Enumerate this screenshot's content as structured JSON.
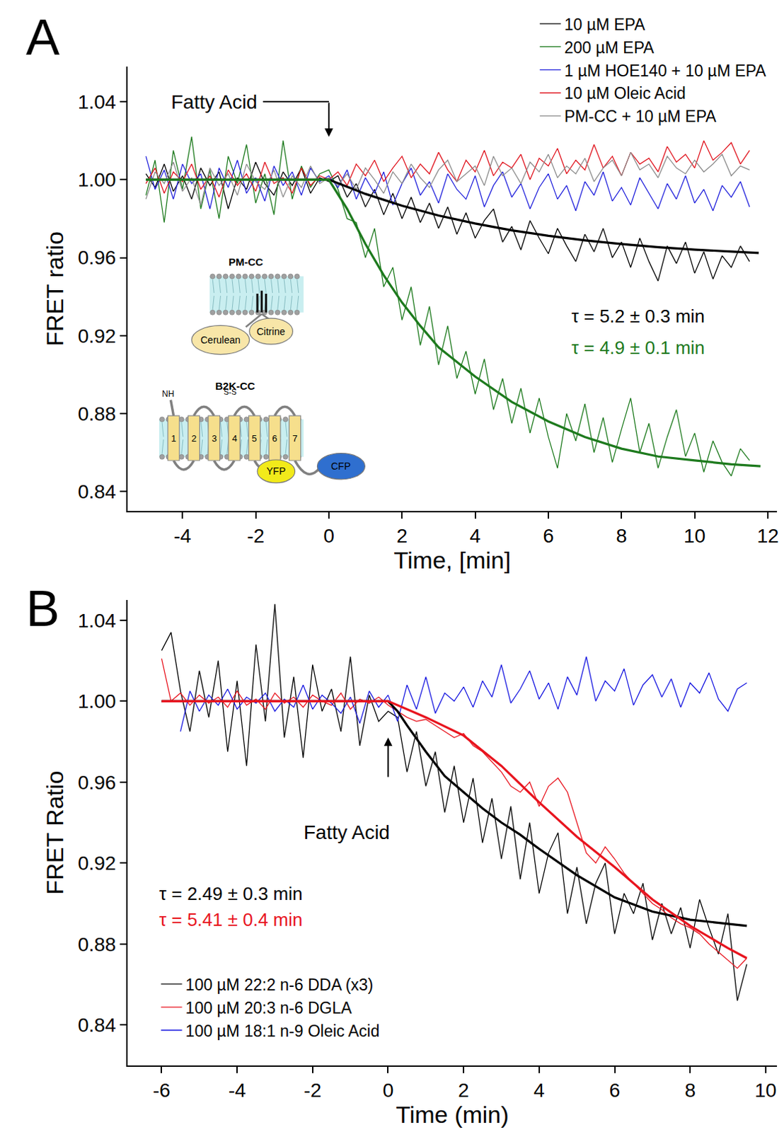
{
  "chart_data": [
    {
      "panel": "A",
      "type": "line",
      "x_label": "Time, [min]",
      "y_label": "FRET ratio",
      "xlim": [
        -5.5,
        12.25
      ],
      "ylim": [
        0.83,
        1.058
      ],
      "xticks": [
        -4,
        -2,
        0,
        2,
        4,
        6,
        8,
        10,
        12
      ],
      "yticks": [
        0.84,
        0.88,
        0.92,
        0.96,
        {
          "value": 1,
          "label": "1.00"
        },
        1.04
      ],
      "grid": false,
      "legend": "top right",
      "x": [
        -5,
        -4.75,
        -4.5,
        -4.25,
        -4,
        -3.75,
        -3.5,
        -3.25,
        -3,
        -2.75,
        -2.5,
        -2.25,
        -2,
        -1.75,
        -1.5,
        -1.25,
        -1,
        -0.75,
        -0.5,
        -0.25,
        0,
        0.25,
        0.5,
        0.75,
        1,
        1.25,
        1.5,
        1.75,
        2,
        2.25,
        2.5,
        2.75,
        3,
        3.25,
        3.5,
        3.75,
        4,
        4.25,
        4.5,
        4.75,
        5,
        5.25,
        5.5,
        5.75,
        6,
        6.25,
        6.5,
        6.75,
        7,
        7.25,
        7.5,
        7.75,
        8,
        8.25,
        8.5,
        8.75,
        9,
        9.25,
        9.5,
        9.75,
        10,
        10.25,
        10.5,
        10.75,
        11,
        11.25,
        11.5
      ],
      "series": [
        {
          "name": "10 µM EPA",
          "color": "#000000",
          "values": [
            1.003,
            0.996,
            1.008,
            0.994,
            1.002,
            0.99,
            1.006,
            0.997,
            1.004,
            0.985,
            1.001,
            0.995,
            1.009,
            0.998,
            0.992,
            1.004,
            0.997,
            1.006,
            0.993,
            1.001,
            0.999,
            1.002,
            0.991,
            0.998,
            0.986,
            0.995,
            0.982,
            0.993,
            0.98,
            0.991,
            0.978,
            0.988,
            0.975,
            0.986,
            0.972,
            0.983,
            0.97,
            0.979,
            0.985,
            0.968,
            0.976,
            0.964,
            0.979,
            0.97,
            0.962,
            0.975,
            0.966,
            0.958,
            0.972,
            0.963,
            0.975,
            0.96,
            0.968,
            0.955,
            0.97,
            0.958,
            0.948,
            0.966,
            0.957,
            0.968,
            0.952,
            0.963,
            0.949,
            0.961,
            0.955,
            0.966,
            0.958
          ],
          "fit": {
            "x": [
              -5,
              0,
              1,
              2,
              3,
              4,
              5,
              6,
              7,
              8,
              9,
              10,
              11,
              11.75
            ],
            "values": [
              1,
              1,
              0.9927,
              0.9866,
              0.9816,
              0.9775,
              0.974,
              0.9712,
              0.9689,
              0.967,
              0.9654,
              0.9641,
              0.9631,
              0.9624
            ]
          }
        },
        {
          "name": "200 µM EPA",
          "color": "#1d7a1d",
          "values": [
            0.992,
            1.01,
            0.978,
            1.015,
            0.995,
            1.022,
            0.985,
            1.005,
            0.98,
            1.012,
            0.998,
            1.018,
            0.988,
            1.003,
            0.982,
            1.02,
            0.99,
            1.007,
            0.996,
            1.003,
            1.005,
            0.995,
            0.98,
            0.978,
            0.96,
            0.975,
            0.945,
            0.955,
            0.928,
            0.945,
            0.915,
            0.935,
            0.905,
            0.925,
            0.898,
            0.912,
            0.89,
            0.908,
            0.882,
            0.898,
            0.875,
            0.893,
            0.87,
            0.888,
            0.868,
            0.852,
            0.88,
            0.866,
            0.885,
            0.86,
            0.878,
            0.855,
            0.872,
            0.888,
            0.86,
            0.875,
            0.852,
            0.868,
            0.882,
            0.858,
            0.87,
            0.85,
            0.866,
            0.855,
            0.848,
            0.862,
            0.856
          ],
          "fit": {
            "x": [
              -5,
              0,
              0.5,
              1,
              1.5,
              2,
              2.5,
              3,
              4,
              5,
              6,
              7,
              8,
              9,
              10,
              11,
              11.8
            ],
            "values": [
              1,
              1,
              0.985,
              0.967,
              0.951,
              0.937,
              0.925,
              0.914,
              0.899,
              0.886,
              0.876,
              0.868,
              0.862,
              0.858,
              0.856,
              0.854,
              0.853
            ]
          }
        },
        {
          "name": "1 µM HOE140 + 10 µM EPA",
          "color": "#2323dc",
          "values": [
            1.012,
            0.995,
            1.005,
            0.99,
            1.008,
            0.998,
            1.003,
            0.985,
            1.006,
            0.996,
            1.01,
            0.993,
            1.001,
            0.989,
            1.007,
            0.997,
            1.004,
            0.992,
            1.006,
            0.999,
            1.002,
            0.996,
            1.005,
            0.99,
            1.001,
            0.993,
            1.004,
            0.987,
            0.998,
            1.006,
            0.992,
            0.999,
            0.988,
            1.003,
            0.995,
            0.99,
            1.002,
            0.986,
            0.997,
            1.004,
            0.991,
            0.998,
            0.985,
            0.996,
            1.003,
            0.99,
            0.997,
            0.984,
            0.999,
            0.992,
            1.004,
            0.989,
            0.996,
            0.987,
            1.001,
            0.993,
            0.985,
            0.998,
            0.99,
            1.002,
            0.988,
            0.995,
            0.984,
            0.997,
            0.991,
            0.999,
            0.986
          ]
        },
        {
          "name": "10 µM Oleic Acid",
          "color": "#e0141e",
          "values": [
            0.998,
            1.006,
            0.993,
            1.004,
            0.999,
            1.008,
            0.995,
            1.002,
            0.991,
            1.005,
            0.997,
            1.003,
            0.994,
            1.009,
            0.998,
            1.001,
            0.993,
            1.006,
            0.997,
            1.002,
            1.0,
            1.004,
            0.997,
            1.008,
            1.002,
            1.01,
            0.999,
            1.006,
            1.012,
            1.001,
            1.008,
            1.003,
            1.014,
            1.005,
            0.999,
            1.01,
            1.004,
            1.015,
            1.002,
            1.009,
            1.006,
            1.013,
            1.0,
            1.011,
            1.007,
            1.016,
            1.003,
            1.01,
            1.005,
            1.018,
            1.006,
            1.012,
            1.002,
            1.014,
            1.008,
            1.011,
            1.004,
            1.017,
            1.009,
            1.013,
            1.006,
            1.02,
            1.01,
            1.014,
            1.019,
            1.008,
            1.015
          ]
        },
        {
          "name": "PM-CC + 10 µM EPA",
          "color": "#8c8c8c",
          "values": [
            0.99,
            1.004,
            0.998,
            1.009,
            0.994,
            1.001,
            0.987,
            1.006,
            0.997,
            1.003,
            0.992,
            1.008,
            0.999,
            0.995,
            1.005,
            0.991,
            1.002,
            0.996,
            1.007,
            0.998,
            1.001,
            0.997,
            1.003,
            0.995,
            1.006,
            1.0,
            0.993,
            1.004,
            0.998,
            1.008,
            1.001,
            0.996,
            1.005,
            1.01,
            0.999,
            1.003,
            1.007,
            0.997,
            1.012,
            1.002,
            1.006,
            0.998,
            1.009,
            1.004,
            1.013,
            1.001,
            1.007,
            1.003,
            1.011,
            0.999,
            1.006,
            1.01,
            1.002,
            1.014,
            1.005,
            1.008,
            1.001,
            1.012,
            1.006,
            1.003,
            1.01,
            1.004,
            1.008,
            1.013,
            1.002,
            1.007,
            1.005
          ]
        }
      ],
      "annotations": [
        {
          "text": "τ = 5.2 ± 0.3 min",
          "x": 6.6,
          "y": 0.93,
          "color": "#000000"
        },
        {
          "text": "τ = 4.9 ± 0.1 min",
          "x": 6.6,
          "y": 0.914,
          "color": "#1d7a1d"
        }
      ],
      "event": {
        "text": "Fatty Acid",
        "x": 0,
        "text_x": -1.8,
        "text_y": 1.04,
        "from_y": 1.04,
        "to_y": 1.022
      },
      "insets": {
        "pm_cc": {
          "title": "PM-CC",
          "donor": "Cerulean",
          "acceptor": "Citrine"
        },
        "b2k_cc": {
          "title": "B2K-CC",
          "n_terminus": "NH",
          "disulfide": "S-S",
          "helices": [
            "1",
            "2",
            "3",
            "4",
            "5",
            "6",
            "7"
          ],
          "acceptor": "YFP",
          "donor": "CFP"
        }
      }
    },
    {
      "panel": "B",
      "type": "line",
      "x_label": "Time (min)",
      "y_label": "FRET Ratio",
      "xlim": [
        -6.9,
        10.3
      ],
      "ylim": [
        0.82,
        1.05
      ],
      "xticks": [
        -6,
        -4,
        -2,
        0,
        2,
        4,
        6,
        8,
        10
      ],
      "yticks": [
        0.84,
        0.88,
        0.92,
        0.96,
        {
          "value": 1,
          "label": "1.00"
        },
        1.04
      ],
      "grid": false,
      "legend": "bottom left",
      "x": [
        -6,
        -5.75,
        -5.5,
        -5.25,
        -5,
        -4.75,
        -4.5,
        -4.25,
        -4,
        -3.75,
        -3.5,
        -3.25,
        -3,
        -2.75,
        -2.5,
        -2.25,
        -2,
        -1.75,
        -1.5,
        -1.25,
        -1,
        -0.75,
        -0.5,
        -0.25,
        0,
        0.25,
        0.5,
        0.75,
        1,
        1.25,
        1.5,
        1.75,
        2,
        2.25,
        2.5,
        2.75,
        3,
        3.25,
        3.5,
        3.75,
        4,
        4.25,
        4.5,
        4.75,
        5,
        5.25,
        5.5,
        5.75,
        6,
        6.25,
        6.5,
        6.75,
        7,
        7.25,
        7.5,
        7.75,
        8,
        8.25,
        8.5,
        8.75,
        9,
        9.25,
        9.5
      ],
      "series": [
        {
          "name": "100 µM 22:2 n-6 DDA (x3)",
          "color": "#000000",
          "values": [
            1.025,
            1.034,
            1.005,
            0.985,
            1.015,
            0.992,
            1.02,
            0.975,
            1.01,
            0.968,
            1.028,
            0.99,
            1.048,
            0.982,
            1.012,
            0.972,
            1.018,
            0.995,
            1.006,
            0.985,
            1.022,
            0.978,
            1.003,
            0.99,
            0.995,
            0.992,
            0.965,
            0.985,
            0.958,
            0.975,
            0.945,
            0.968,
            0.94,
            0.962,
            0.93,
            0.952,
            0.922,
            0.948,
            0.912,
            0.94,
            0.905,
            0.925,
            0.935,
            0.895,
            0.918,
            0.89,
            0.91,
            0.92,
            0.885,
            0.905,
            0.895,
            0.91,
            0.882,
            0.9,
            0.885,
            0.898,
            0.878,
            0.902,
            0.888,
            0.875,
            0.895,
            0.852,
            0.87
          ],
          "fit": {
            "x": [
              -6,
              0,
              0.25,
              0.5,
              1,
              1.5,
              2,
              2.5,
              3,
              3.5,
              4,
              5,
              6,
              7,
              8,
              9,
              9.5
            ],
            "values": [
              1,
              1,
              0.995,
              0.988,
              0.975,
              0.963,
              0.955,
              0.947,
              0.94,
              0.934,
              0.927,
              0.914,
              0.903,
              0.896,
              0.892,
              0.89,
              0.889
            ]
          }
        },
        {
          "name": "100 µM 20:3 n-6 DGLA",
          "color": "#e8141e",
          "values": [
            1.021,
            1.0,
            1.004,
            0.998,
            1.003,
            0.999,
            1.002,
            0.997,
            1.005,
            0.998,
            1.001,
            0.996,
            1.004,
            0.999,
            1.002,
            0.997,
            1.003,
            1.0,
            0.998,
            1.004,
            0.996,
            1.001,
            0.999,
            1.002,
            0.998,
            0.995,
            0.992,
            0.99,
            0.991,
            0.988,
            0.985,
            0.982,
            0.984,
            0.978,
            0.975,
            0.97,
            0.965,
            0.958,
            0.955,
            0.96,
            0.948,
            0.958,
            0.962,
            0.955,
            0.94,
            0.925,
            0.92,
            0.928,
            0.922,
            0.915,
            0.91,
            0.905,
            0.9,
            0.897,
            0.893,
            0.89,
            0.888,
            0.885,
            0.88,
            0.876,
            0.872,
            0.868,
            0.873
          ],
          "fit": {
            "x": [
              -6,
              0,
              1,
              2,
              3,
              4,
              5,
              6,
              7,
              8,
              9,
              9.5
            ],
            "values": [
              1,
              1,
              0.992,
              0.983,
              0.968,
              0.95,
              0.933,
              0.918,
              0.902,
              0.889,
              0.878,
              0.873
            ]
          }
        },
        {
          "name": "100 µM 18:1 n-9 Oleic Acid",
          "color": "#1818e0",
          "values": [
            null,
            null,
            0.985,
            1.005,
            0.995,
            1.003,
            0.998,
            1.006,
            0.996,
            1.002,
            0.999,
            1.004,
            0.995,
            1.001,
            0.997,
            1.008,
            0.996,
            1.003,
            0.999,
            0.994,
            1.002,
            0.989,
            1.005,
            0.997,
            1.003,
            0.99,
            1.008,
            0.996,
            1.012,
            0.994,
            1.004,
            1.0,
            1.007,
            0.997,
            1.01,
            1.002,
            1.018,
            0.999,
            1.006,
            1.015,
            1.001,
            1.009,
            0.996,
            1.012,
            1.003,
            1.022,
            1.0,
            1.01,
            1.005,
            1.016,
            0.998,
            1.008,
            1.013,
            1.002,
            1.011,
            0.997,
            1.009,
            1.004,
            1.014,
            1.001,
            0.995,
            1.006,
            1.009
          ]
        }
      ],
      "annotations": [
        {
          "text": "τ = 2.49 ± 0.3 min",
          "x": -6.1,
          "y": 0.905,
          "color": "#000000"
        },
        {
          "text": "τ = 5.41 ± 0.4 min",
          "x": -6.1,
          "y": 0.892,
          "color": "#e8141e"
        }
      ],
      "event": {
        "text": "Fatty Acid",
        "x": 0,
        "text_x": -1.1,
        "text_y": 0.935,
        "from_y": 0.962,
        "to_y": 0.982
      }
    }
  ]
}
